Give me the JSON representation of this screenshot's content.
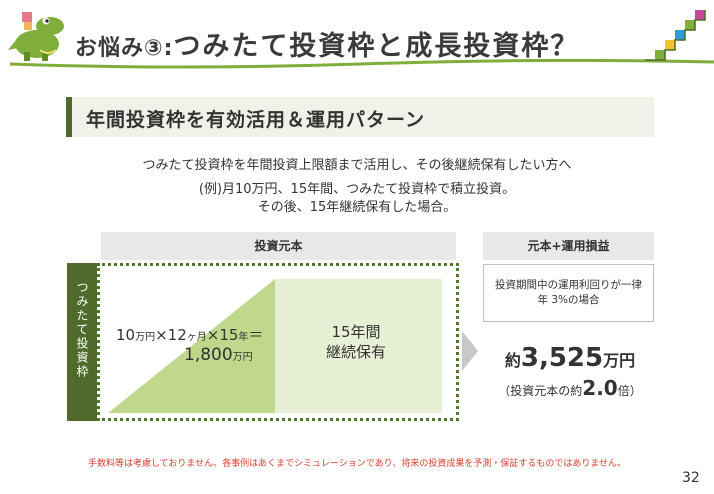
{
  "header": {
    "title_prefix": "お悩み③:",
    "title_main": "つみたて投資枠と成長投資枠？"
  },
  "section": {
    "heading": "年間投資枠を有効活用＆運用パターン"
  },
  "intro": {
    "line1": "つみたて投資枠を年間投資上限額まで活用し、その後継続保有したい方へ",
    "line2": "(例)月10万円、15年間、つみたて投資枠で積立投資。",
    "line3": "その後、15年継続保有した場合。"
  },
  "columns": {
    "principal_header": "投資元本",
    "result_header": "元本+運用損益"
  },
  "diagram": {
    "side_label": "つみたて投資枠",
    "formula_amount1": "10",
    "formula_unit1": "万円",
    "formula_x1": "×12",
    "formula_unit2": "ヶ月",
    "formula_x2": "×15",
    "formula_unit3": "年",
    "formula_eq": "＝",
    "result_amount": "1,800",
    "result_unit": "万円",
    "hold_line1": "15年間",
    "hold_line2": "継続保有"
  },
  "result": {
    "rate_line1": "投資期間中の運用利回りが一律",
    "rate_line2": "年 3%の場合",
    "total_prefix": "約",
    "total_value": "3,525",
    "total_unit": "万円",
    "ratio_open": "（投資元本の約",
    "ratio_value": "2.0",
    "ratio_close": "倍）"
  },
  "footer": {
    "disclaimer": "手数料等は考慮しておりません。各事例はあくまでシミュレーションであり、将来の投資成果を予測・保証するものではありません。",
    "page_number": "32"
  },
  "colors": {
    "dark_green": "#4f6a2a",
    "light_green": "#bfd88c",
    "pale_green": "#e7efd4",
    "header_line": "#7fae3a",
    "disclaimer_red": "#e03c2c"
  },
  "icons": [
    "crocodile-mascot-icon",
    "staircase-icon",
    "arrow-right-icon"
  ]
}
